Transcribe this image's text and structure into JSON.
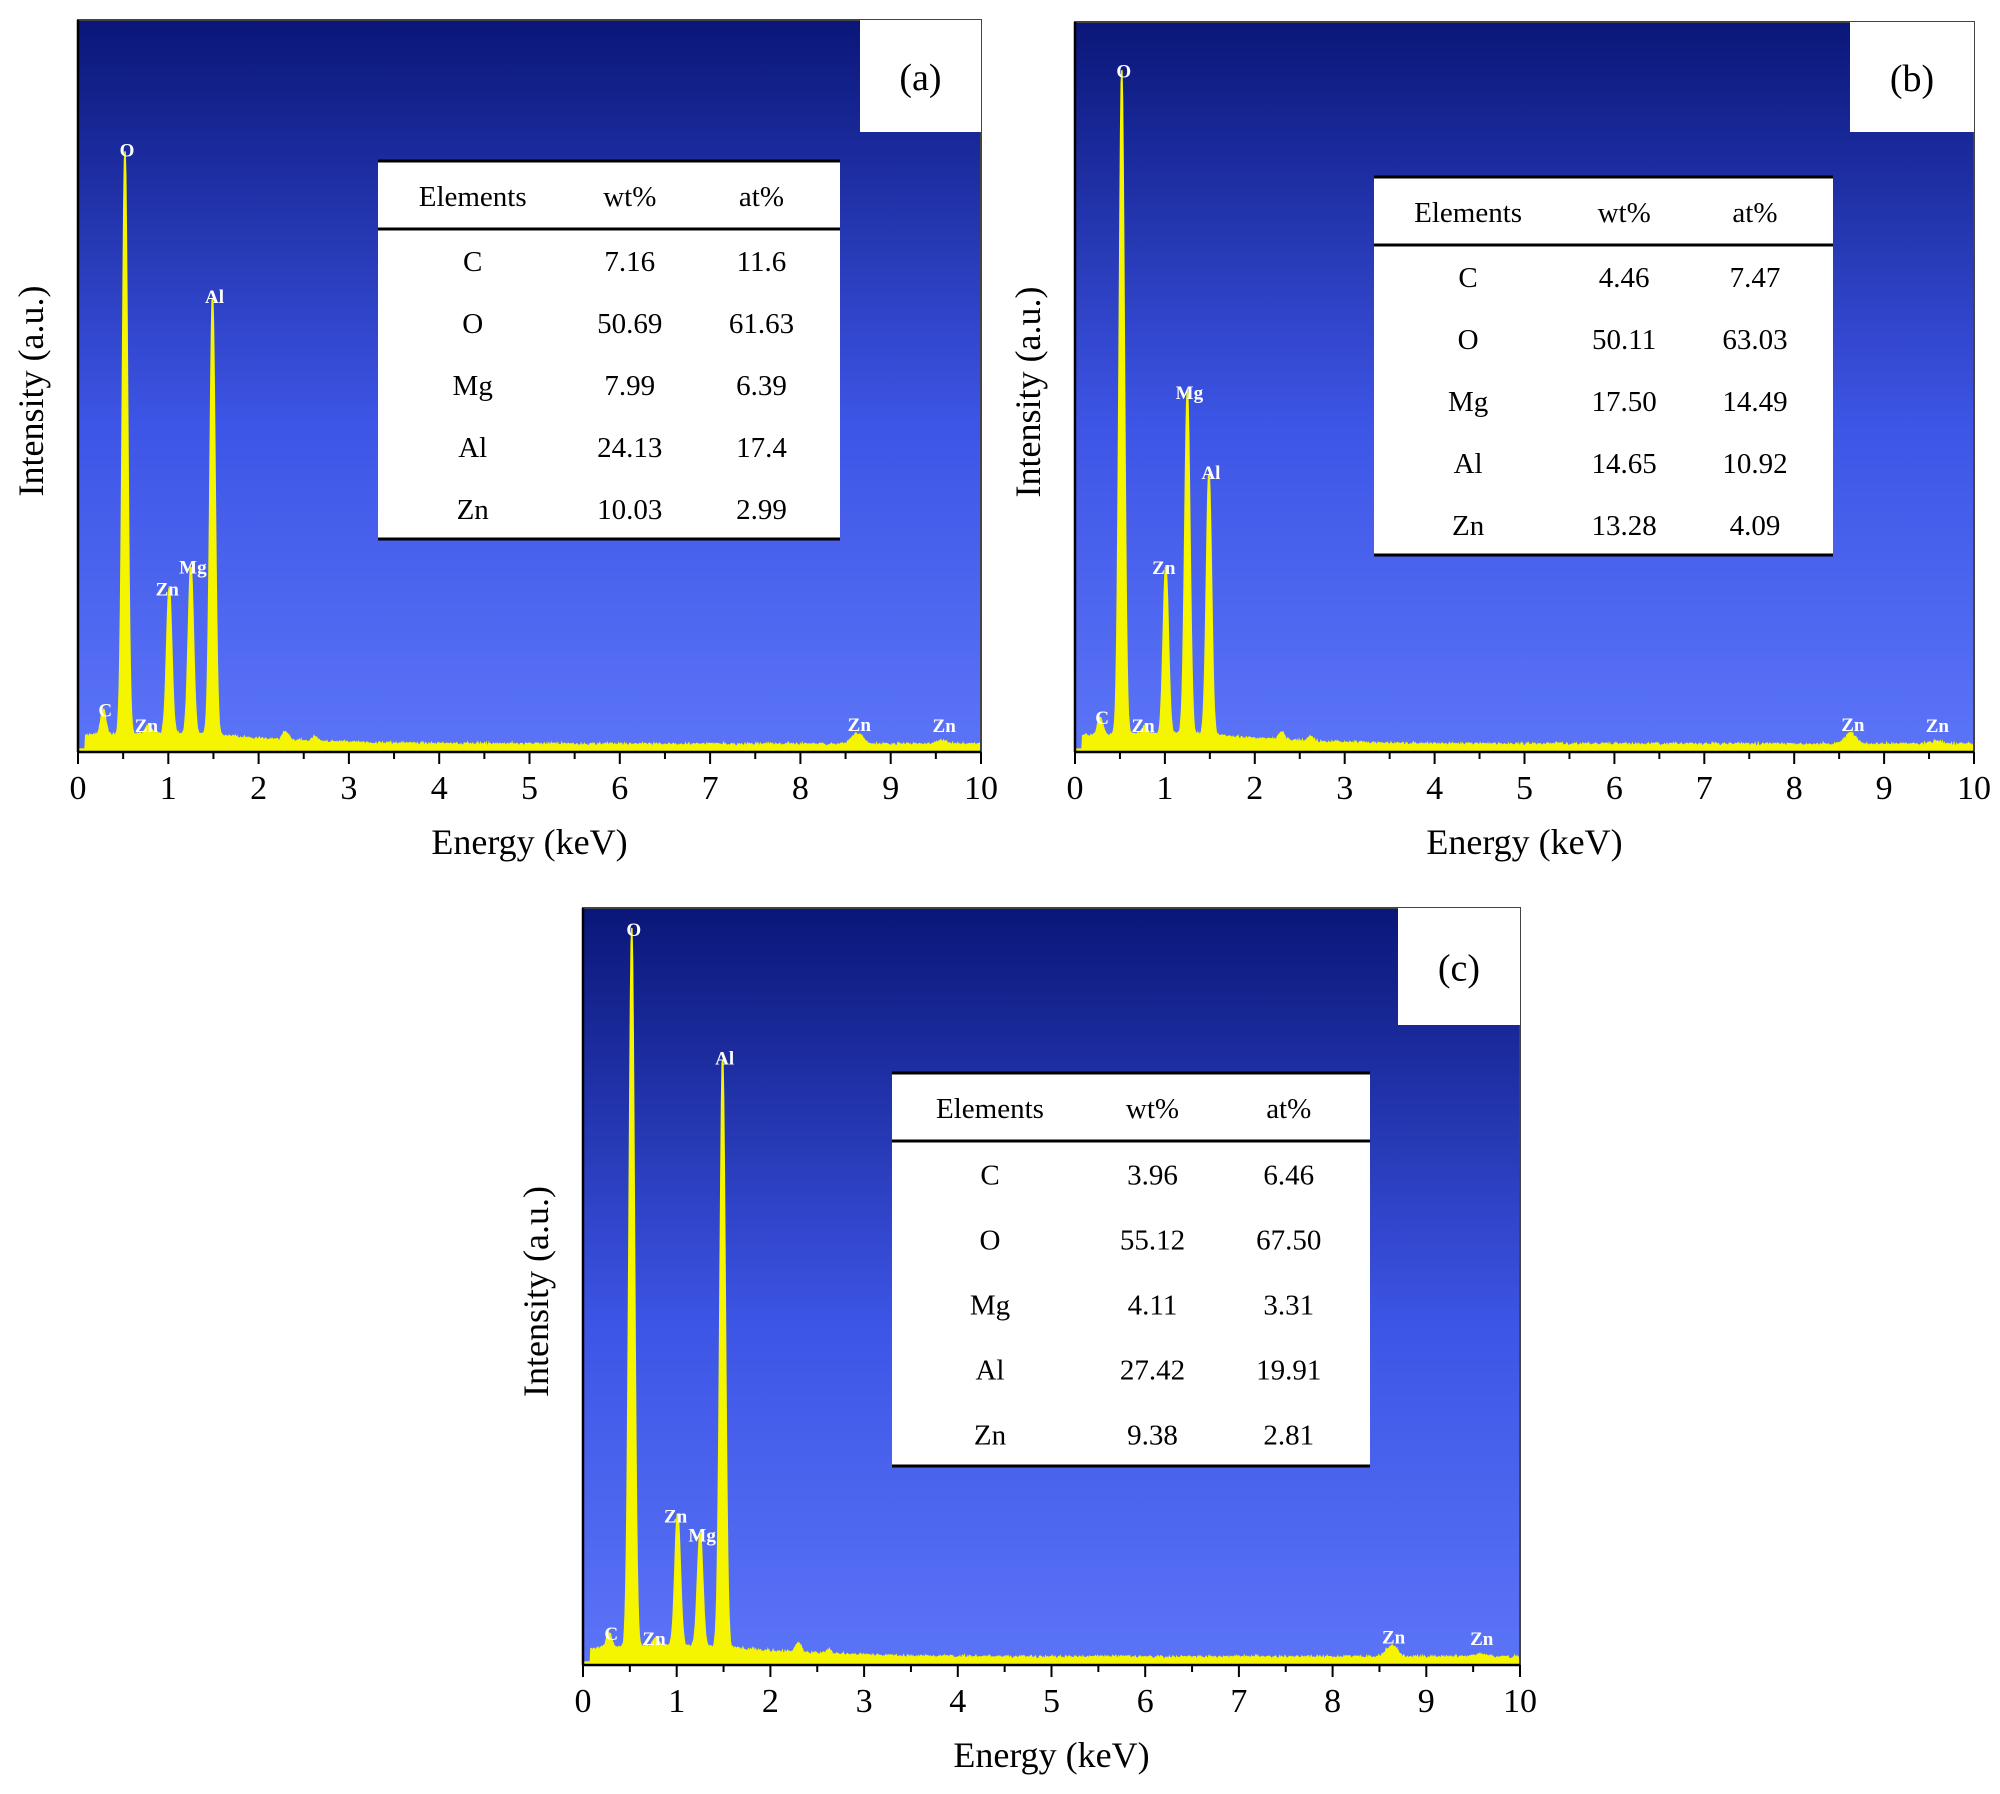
{
  "chart_data": [
    {
      "type": "line",
      "panel_label": "(a)",
      "xlabel": "Energy (keV)",
      "ylabel": "Intensity (a.u.)",
      "xlim": [
        0,
        10
      ],
      "xticks": [
        "0",
        "1",
        "2",
        "3",
        "4",
        "5",
        "6",
        "7",
        "8",
        "9",
        "10"
      ],
      "ylim": [
        0,
        1
      ],
      "grid": false,
      "peaks": [
        {
          "element": "C",
          "energy": 0.28,
          "intensity": 0.035
        },
        {
          "element": "O",
          "energy": 0.52,
          "intensity": 0.8
        },
        {
          "element": "Zn",
          "energy": 0.78,
          "intensity": 0.012
        },
        {
          "element": "Zn",
          "energy": 1.01,
          "intensity": 0.2
        },
        {
          "element": "Mg",
          "energy": 1.25,
          "intensity": 0.23
        },
        {
          "element": "Al",
          "energy": 1.49,
          "intensity": 0.6
        },
        {
          "element": "Zn",
          "energy": 8.63,
          "intensity": 0.015
        },
        {
          "element": "Zn",
          "energy": 9.57,
          "intensity": 0.004
        }
      ],
      "table": {
        "headers": [
          "Elements",
          "wt%",
          "at%"
        ],
        "rows": [
          [
            "C",
            "7.16",
            "11.6"
          ],
          [
            "O",
            "50.69",
            "61.63"
          ],
          [
            "Mg",
            "7.99",
            "6.39"
          ],
          [
            "Al",
            "24.13",
            "17.4"
          ],
          [
            "Zn",
            "10.03",
            "2.99"
          ]
        ]
      }
    },
    {
      "type": "line",
      "panel_label": "(b)",
      "xlabel": "Energy (keV)",
      "ylabel": "Intensity (a.u.)",
      "xlim": [
        0,
        10
      ],
      "xticks": [
        "0",
        "1",
        "2",
        "3",
        "4",
        "5",
        "6",
        "7",
        "8",
        "9",
        "10"
      ],
      "ylim": [
        0,
        1
      ],
      "grid": false,
      "peaks": [
        {
          "element": "C",
          "energy": 0.28,
          "intensity": 0.025
        },
        {
          "element": "O",
          "energy": 0.52,
          "intensity": 0.91
        },
        {
          "element": "Zn",
          "energy": 0.78,
          "intensity": 0.01
        },
        {
          "element": "Zn",
          "energy": 1.01,
          "intensity": 0.23
        },
        {
          "element": "Mg",
          "energy": 1.25,
          "intensity": 0.47
        },
        {
          "element": "Al",
          "energy": 1.49,
          "intensity": 0.36
        },
        {
          "element": "Zn",
          "energy": 8.63,
          "intensity": 0.015
        },
        {
          "element": "Zn",
          "energy": 9.57,
          "intensity": 0.004
        }
      ],
      "table": {
        "headers": [
          "Elements",
          "wt%",
          "at%"
        ],
        "rows": [
          [
            "C",
            "4.46",
            "7.47"
          ],
          [
            "O",
            "50.11",
            "63.03"
          ],
          [
            "Mg",
            "17.50",
            "14.49"
          ],
          [
            "Al",
            "14.65",
            "10.92"
          ],
          [
            "Zn",
            "13.28",
            "4.09"
          ]
        ]
      }
    },
    {
      "type": "line",
      "panel_label": "(c)",
      "xlabel": "Energy (keV)",
      "ylabel": "Intensity (a.u.)",
      "xlim": [
        0,
        10
      ],
      "xticks": [
        "0",
        "1",
        "2",
        "3",
        "4",
        "5",
        "6",
        "7",
        "8",
        "9",
        "10"
      ],
      "ylim": [
        0,
        1
      ],
      "grid": false,
      "peaks": [
        {
          "element": "C",
          "energy": 0.28,
          "intensity": 0.02
        },
        {
          "element": "O",
          "energy": 0.52,
          "intensity": 0.95
        },
        {
          "element": "Zn",
          "energy": 0.78,
          "intensity": 0.012
        },
        {
          "element": "Zn",
          "energy": 1.01,
          "intensity": 0.175
        },
        {
          "element": "Mg",
          "energy": 1.25,
          "intensity": 0.15
        },
        {
          "element": "Al",
          "energy": 1.49,
          "intensity": 0.78
        },
        {
          "element": "Zn",
          "energy": 8.63,
          "intensity": 0.015
        },
        {
          "element": "Zn",
          "energy": 9.57,
          "intensity": 0.004
        }
      ],
      "table": {
        "headers": [
          "Elements",
          "wt%",
          "at%"
        ],
        "rows": [
          [
            "C",
            "3.96",
            "6.46"
          ],
          [
            "O",
            "55.12",
            "67.50"
          ],
          [
            "Mg",
            "4.11",
            "3.31"
          ],
          [
            "Al",
            "27.42",
            "19.91"
          ],
          [
            "Zn",
            "9.38",
            "2.81"
          ]
        ]
      }
    }
  ],
  "colors": {
    "plot_bg_top": "#0a1678",
    "plot_bg_bottom": "#5770f5",
    "spectrum": "#f5f500",
    "peak_label": "#ffffff",
    "axis": "#000000"
  }
}
